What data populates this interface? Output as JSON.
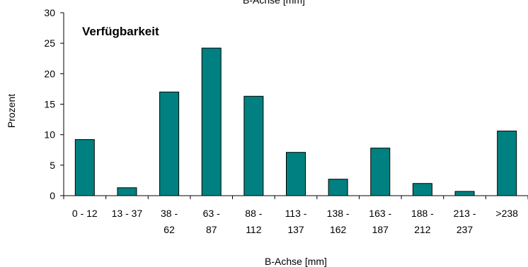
{
  "chart_data": {
    "type": "bar",
    "title": "B-Achse [mm]",
    "annotation": "Verfügbarkeit",
    "xlabel": "B-Achse [mm]",
    "ylabel": "Prozent",
    "categories": [
      [
        "0 - 12"
      ],
      [
        "13 - 37"
      ],
      [
        "38 -",
        "62"
      ],
      [
        "63 -",
        "87"
      ],
      [
        "88 -",
        "112"
      ],
      [
        "113 -",
        "137"
      ],
      [
        "138 -",
        "162"
      ],
      [
        "163 -",
        "187"
      ],
      [
        "188 -",
        "212"
      ],
      [
        "213 -",
        "237"
      ],
      [
        ">238"
      ]
    ],
    "values": [
      9.2,
      1.3,
      17.0,
      24.2,
      16.3,
      7.1,
      2.7,
      7.8,
      2.0,
      0.7,
      10.6
    ],
    "ylim": [
      0,
      30
    ],
    "yticks": [
      "0",
      "5",
      "10",
      "15",
      "20",
      "25",
      "30"
    ],
    "grid": false,
    "legend": "none",
    "bar_color": "#008080",
    "bar_edge_color": "#000000"
  }
}
